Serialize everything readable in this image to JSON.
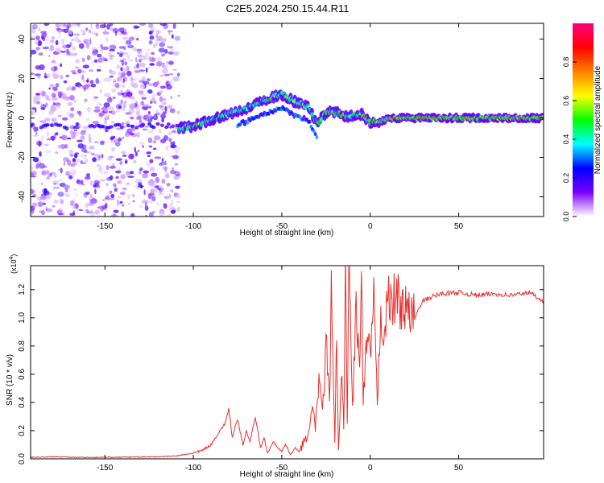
{
  "figure": {
    "title": "C2E5.2024.250.15.44.R11"
  },
  "chart_data": [
    {
      "type": "heatmap",
      "title": "C2E5.2024.250.15.44.R11",
      "xlabel": "Height of straight line (km)",
      "ylabel": "Frequency (Hz)",
      "xlim": [
        -192,
        98
      ],
      "ylim": [
        -50,
        48
      ],
      "xticks": [
        -150,
        -100,
        -50,
        0,
        50
      ],
      "xtick_labels": [
        "-150",
        "-100",
        "-50",
        "0",
        "50"
      ],
      "yticks": [
        -40,
        -20,
        0,
        20,
        40
      ],
      "ytick_labels": [
        "-40",
        "-20",
        "0",
        "20",
        "40"
      ],
      "noise_region_x": [
        -192,
        -108
      ],
      "ridge": {
        "name": "dominant frequency ridge",
        "x": [
          -108,
          -100,
          -90,
          -80,
          -70,
          -60,
          -50,
          -42,
          -35,
          -30,
          -25,
          -20,
          -15,
          -10,
          -5,
          0,
          5,
          10,
          20,
          30,
          50,
          70,
          98
        ],
        "y": [
          -5,
          -4,
          -1,
          2,
          5,
          9,
          12,
          8,
          6,
          -3,
          3,
          3,
          1,
          1,
          2,
          -2,
          -2,
          0,
          0,
          0,
          0,
          0,
          0
        ]
      },
      "colorbar": {
        "label": "Normalized spectral amplitude",
        "range": [
          0.0,
          1.0
        ],
        "ticks": [
          0.0,
          0.2,
          0.4,
          0.6,
          0.8
        ],
        "tick_labels": [
          "0.0",
          "0.2",
          "0.4",
          "0.6",
          "0.8"
        ],
        "colors": [
          "#ffffff",
          "#7b00ff",
          "#0000ff",
          "#00ffff",
          "#00ff00",
          "#ffff00",
          "#ff7f00",
          "#ff0000",
          "#ff0080"
        ]
      }
    },
    {
      "type": "line",
      "xlabel": "Height of straight line (km)",
      "ylabel": "SNR (10 * v/v)",
      "y_scale_label": "(x10",
      "y_scale_exp": "4",
      "y_scale_close": ")",
      "xlim": [
        -192,
        98
      ],
      "ylim": [
        0,
        1.37
      ],
      "xticks": [
        -150,
        -100,
        -50,
        0,
        50
      ],
      "xtick_labels": [
        "-150",
        "-100",
        "-50",
        "0",
        "50"
      ],
      "yticks": [
        0,
        0.2,
        0.4,
        0.6,
        0.8,
        1.0,
        1.2
      ],
      "ytick_labels": [
        "0.0",
        "0.2",
        "0.4",
        "0.6",
        "0.8",
        "1.0",
        "1.2"
      ],
      "series": [
        {
          "name": "SNR",
          "color": "#e8302e",
          "x": [
            -192,
            -180,
            -160,
            -140,
            -120,
            -110,
            -100,
            -95,
            -90,
            -85,
            -82,
            -80,
            -78,
            -75,
            -72,
            -70,
            -68,
            -65,
            -62,
            -60,
            -58,
            -55,
            -52,
            -50,
            -48,
            -45,
            -42,
            -40,
            -38,
            -35,
            -33,
            -31,
            -29,
            -27,
            -25,
            -23,
            -22,
            -20,
            -19,
            -18,
            -16,
            -15,
            -14,
            -13,
            -12,
            -10,
            -8,
            -6,
            -5,
            -4,
            -2,
            0,
            2,
            4,
            6,
            8,
            10,
            12,
            15,
            20,
            25,
            30,
            35,
            40,
            50,
            60,
            70,
            80,
            90,
            98
          ],
          "y": [
            0.01,
            0.015,
            0.01,
            0.012,
            0.015,
            0.02,
            0.04,
            0.06,
            0.1,
            0.2,
            0.25,
            0.36,
            0.15,
            0.28,
            0.1,
            0.2,
            0.12,
            0.3,
            0.08,
            0.15,
            0.04,
            0.12,
            0.08,
            0.05,
            0.1,
            0.03,
            0.08,
            0.05,
            0.12,
            0.15,
            0.4,
            0.2,
            0.6,
            0.3,
            0.85,
            0.4,
            1.15,
            0.1,
            0.9,
            0.05,
            0.6,
            0.2,
            1.25,
            0.3,
            1.38,
            0.35,
            1.1,
            0.6,
            1.3,
            0.4,
            0.8,
            0.75,
            1.1,
            0.4,
            1.05,
            0.9,
            1.12,
            1.1,
            1.15,
            1.05,
            1.0,
            1.12,
            1.15,
            1.17,
            1.18,
            1.16,
            1.17,
            1.16,
            1.18,
            1.12
          ]
        }
      ]
    }
  ]
}
